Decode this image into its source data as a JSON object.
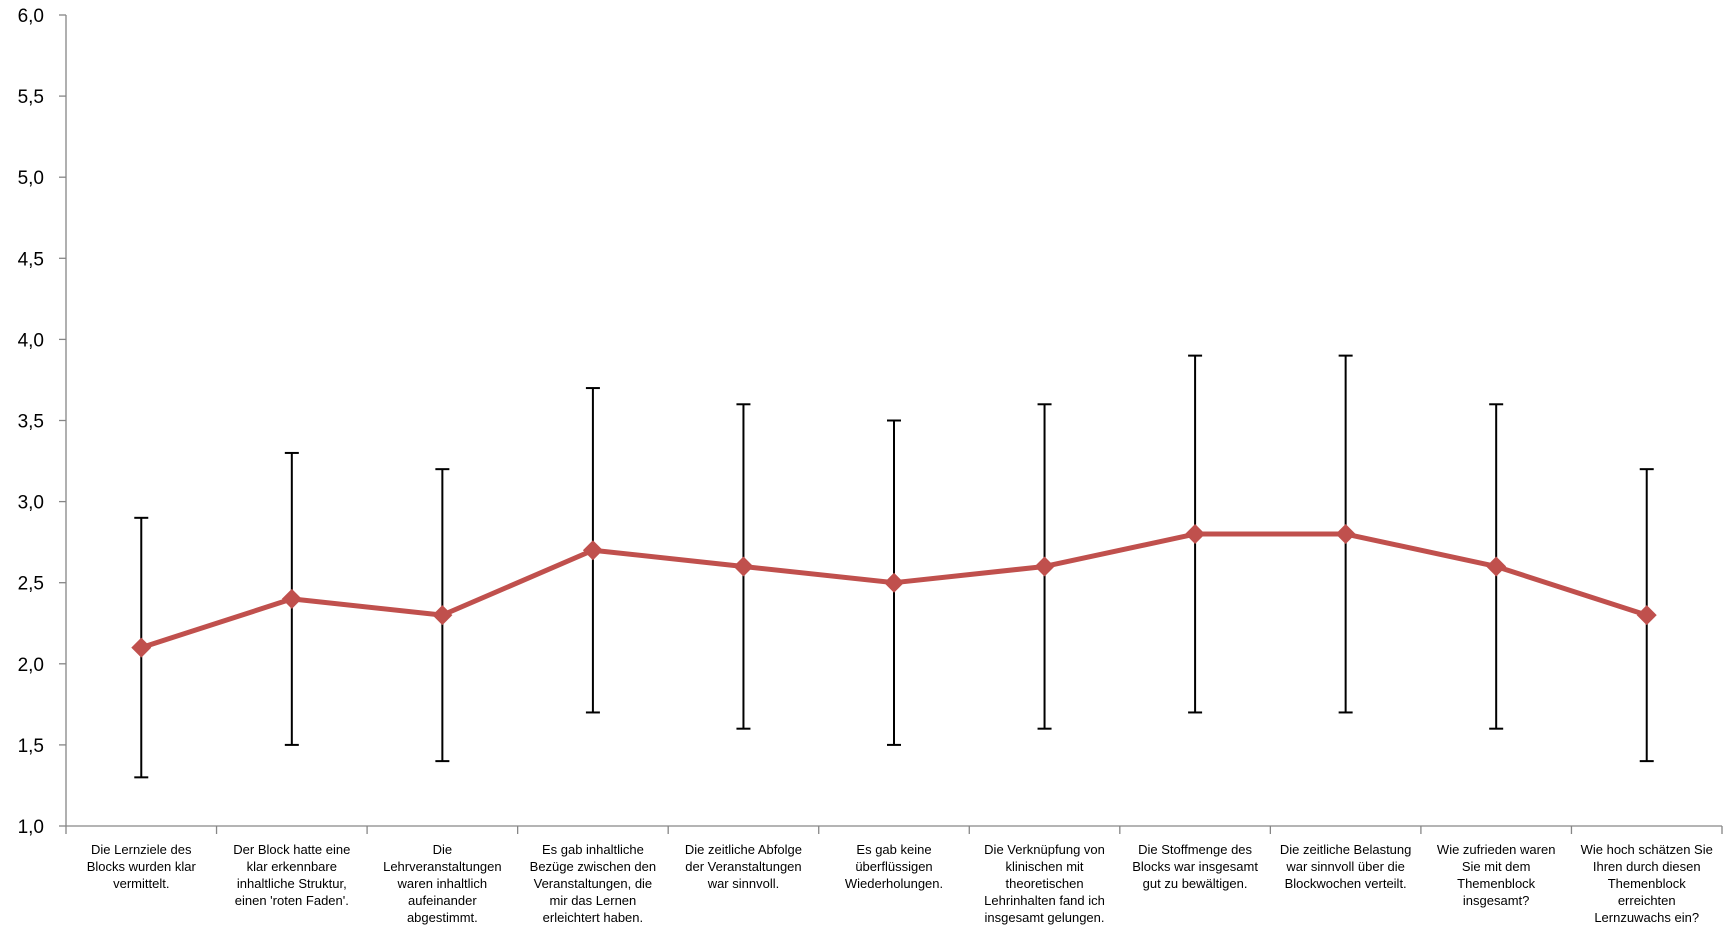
{
  "chart_data": {
    "type": "line",
    "title": "",
    "xlabel": "",
    "ylabel": "",
    "ylim": [
      1.0,
      6.0
    ],
    "yticks": [
      "1,0",
      "1,5",
      "2,0",
      "2,5",
      "3,0",
      "3,5",
      "4,0",
      "4,5",
      "5,0",
      "5,5",
      "6,0"
    ],
    "grid": false,
    "legend": "none",
    "line_color": "#c0504d",
    "errorbar_color": "#000000",
    "categories": [
      "Die Lernziele des Blocks wurden klar vermittelt.",
      "Der Block hatte eine klar erkennbare inhaltliche Struktur, einen 'roten Faden'.",
      "Die Lehrveranstaltungen waren inhaltlich aufeinander abgestimmt.",
      "Es gab inhaltliche Bezüge zwischen den Veranstaltungen, die mir das Lernen erleichtert haben.",
      "Die zeitliche Abfolge der Veranstaltungen war sinnvoll.",
      "Es gab keine überflüssigen Wiederholungen.",
      "Die Verknüpfung von klinischen mit theoretischen Lehrinhalten fand ich insgesamt gelungen.",
      "Die Stoffmenge des Blocks war insgesamt gut zu bewältigen.",
      "Die zeitliche Belastung war sinnvoll über die Blockwochen verteilt.",
      "Wie zufrieden waren Sie mit dem Themenblock insgesamt?",
      "Wie hoch schätzen Sie Ihren durch diesen Themenblock erreichten Lernzuwachs ein?"
    ],
    "series": [
      {
        "values": [
          2.1,
          2.4,
          2.3,
          2.7,
          2.6,
          2.5,
          2.6,
          2.8,
          2.8,
          2.6,
          2.3
        ],
        "error": [
          0.8,
          0.9,
          0.9,
          1.0,
          1.0,
          1.0,
          1.0,
          1.1,
          1.1,
          1.0,
          0.9
        ]
      }
    ]
  }
}
